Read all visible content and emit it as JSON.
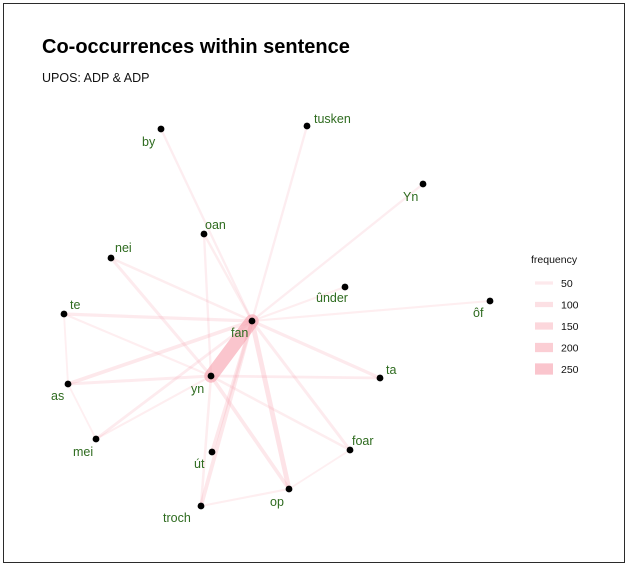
{
  "title": "Co-occurrences within sentence",
  "subtitle": "UPOS: ADP & ADP",
  "legend": {
    "title": "frequency",
    "entries": [
      "50",
      "100",
      "150",
      "200",
      "250"
    ]
  },
  "colors": {
    "edge": "#f7a1ae",
    "node": "#000000",
    "label": "#2e6b1f"
  },
  "nodes": [
    {
      "id": "fan",
      "label": "fan"
    },
    {
      "id": "yn",
      "label": "yn"
    },
    {
      "id": "by",
      "label": "by"
    },
    {
      "id": "tusken",
      "label": "tusken"
    },
    {
      "id": "Yn",
      "label": "Yn"
    },
    {
      "id": "oan",
      "label": "oan"
    },
    {
      "id": "nei",
      "label": "nei"
    },
    {
      "id": "under",
      "label": "ûnder"
    },
    {
      "id": "of",
      "label": "ôf"
    },
    {
      "id": "te",
      "label": "te"
    },
    {
      "id": "ta",
      "label": "ta"
    },
    {
      "id": "as",
      "label": "as"
    },
    {
      "id": "mei",
      "label": "mei"
    },
    {
      "id": "foar",
      "label": "foar"
    },
    {
      "id": "ut",
      "label": "út"
    },
    {
      "id": "op",
      "label": "op"
    },
    {
      "id": "troch",
      "label": "troch"
    }
  ],
  "edges": [
    {
      "source": "fan",
      "target": "yn",
      "frequency": 270
    },
    {
      "source": "fan",
      "target": "op",
      "frequency": 80
    },
    {
      "source": "fan",
      "target": "troch",
      "frequency": 60
    },
    {
      "source": "fan",
      "target": "as",
      "frequency": 55
    },
    {
      "source": "fan",
      "target": "ut",
      "frequency": 55
    },
    {
      "source": "yn",
      "target": "op",
      "frequency": 55
    },
    {
      "source": "fan",
      "target": "te",
      "frequency": 45
    },
    {
      "source": "fan",
      "target": "ta",
      "frequency": 45
    },
    {
      "source": "fan",
      "target": "foar",
      "frequency": 40
    },
    {
      "source": "yn",
      "target": "as",
      "frequency": 40
    },
    {
      "source": "yn",
      "target": "nei",
      "frequency": 40
    },
    {
      "source": "fan",
      "target": "mei",
      "frequency": 35
    },
    {
      "source": "yn",
      "target": "ta",
      "frequency": 35
    },
    {
      "source": "fan",
      "target": "nei",
      "frequency": 30
    },
    {
      "source": "yn",
      "target": "troch",
      "frequency": 30
    },
    {
      "source": "yn",
      "target": "foar",
      "frequency": 30
    },
    {
      "source": "fan",
      "target": "oan",
      "frequency": 28
    },
    {
      "source": "yn",
      "target": "oan",
      "frequency": 25
    },
    {
      "source": "fan",
      "target": "tusken",
      "frequency": 25
    },
    {
      "source": "fan",
      "target": "by",
      "frequency": 25
    },
    {
      "source": "fan",
      "target": "Yn",
      "frequency": 25
    },
    {
      "source": "fan",
      "target": "of",
      "frequency": 20
    },
    {
      "source": "fan",
      "target": "under",
      "frequency": 20
    },
    {
      "source": "yn",
      "target": "te",
      "frequency": 20
    },
    {
      "source": "yn",
      "target": "mei",
      "frequency": 20
    },
    {
      "source": "op",
      "target": "troch",
      "frequency": 20
    },
    {
      "source": "as",
      "target": "mei",
      "frequency": 15
    },
    {
      "source": "te",
      "target": "as",
      "frequency": 15
    },
    {
      "source": "op",
      "target": "foar",
      "frequency": 15
    }
  ]
}
